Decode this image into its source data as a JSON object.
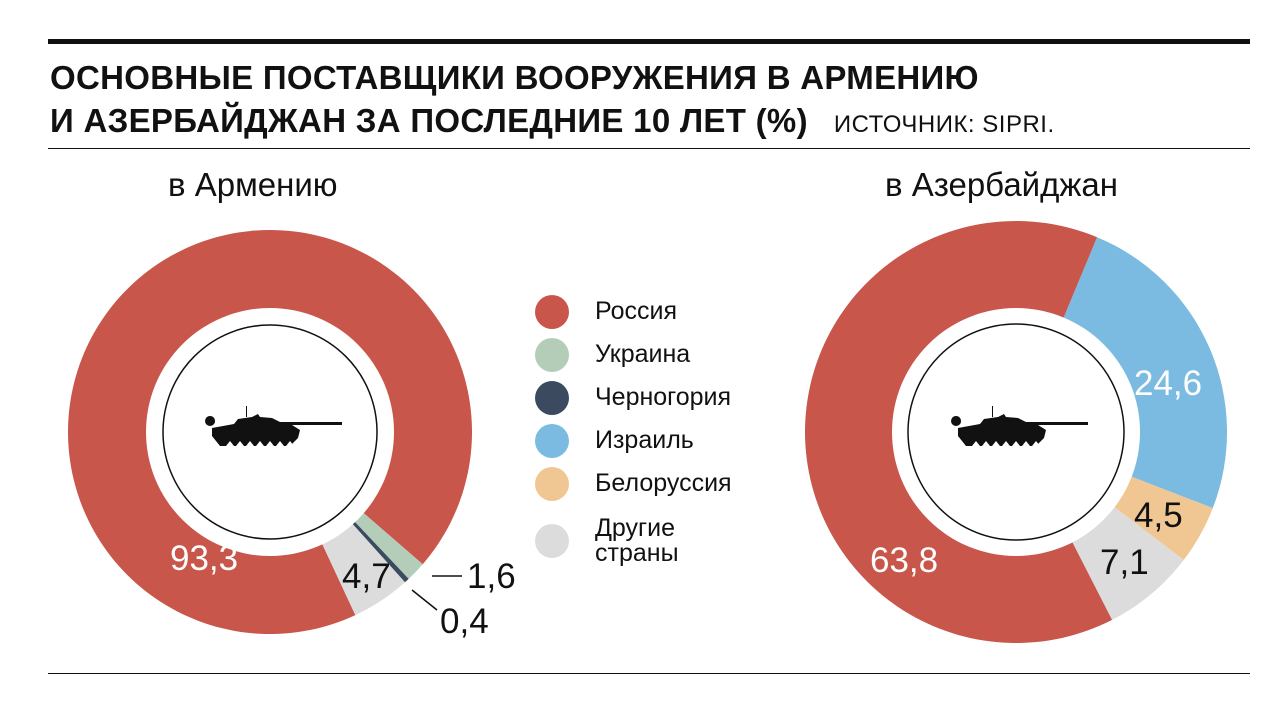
{
  "header": {
    "title_line1": "ОСНОВНЫЕ ПОСТАВЩИКИ  ВООРУЖЕНИЯ В АРМЕНИЮ",
    "title_line2": "И АЗЕРБАЙДЖАН ЗА ПОСЛЕДНИЕ 10 ЛЕТ (%)",
    "source": "ИСТОЧНИК: SIPRI."
  },
  "legend": [
    {
      "label": "Россия",
      "color": "#c9564a"
    },
    {
      "label": "Украина",
      "color": "#b3cdb9"
    },
    {
      "label": "Черногория",
      "color": "#3b4a5e"
    },
    {
      "label": "Израиль",
      "color": "#7bbbe2"
    },
    {
      "label": "Белоруссия",
      "color": "#f0c792"
    },
    {
      "label": "Другие страны",
      "color": "#dcdcdc"
    }
  ],
  "chart_data": [
    {
      "type": "pie",
      "title": "в Армению",
      "start_angle_deg": 155,
      "slices": [
        {
          "name": "Россия",
          "value": 93.3,
          "label": "93,3",
          "color": "#c9564a"
        },
        {
          "name": "Украина",
          "value": 1.6,
          "label": "1,6",
          "color": "#b3cdb9"
        },
        {
          "name": "Черногория",
          "value": 0.4,
          "label": "0,4",
          "color": "#3b4a5e"
        },
        {
          "name": "Другие страны",
          "value": 4.7,
          "label": "4,7",
          "color": "#dcdcdc"
        }
      ]
    },
    {
      "type": "pie",
      "title": "в Азербайджан",
      "start_angle_deg": 22.6,
      "slices": [
        {
          "name": "Израиль",
          "value": 24.6,
          "label": "24,6",
          "color": "#7bbbe2"
        },
        {
          "name": "Белоруссия",
          "value": 4.5,
          "label": "4,5",
          "color": "#f0c792"
        },
        {
          "name": "Другие страны",
          "value": 7.1,
          "label": "7,1",
          "color": "#dcdcdc"
        },
        {
          "name": "Россия",
          "value": 63.8,
          "label": "63,8",
          "color": "#c9564a"
        }
      ]
    }
  ]
}
